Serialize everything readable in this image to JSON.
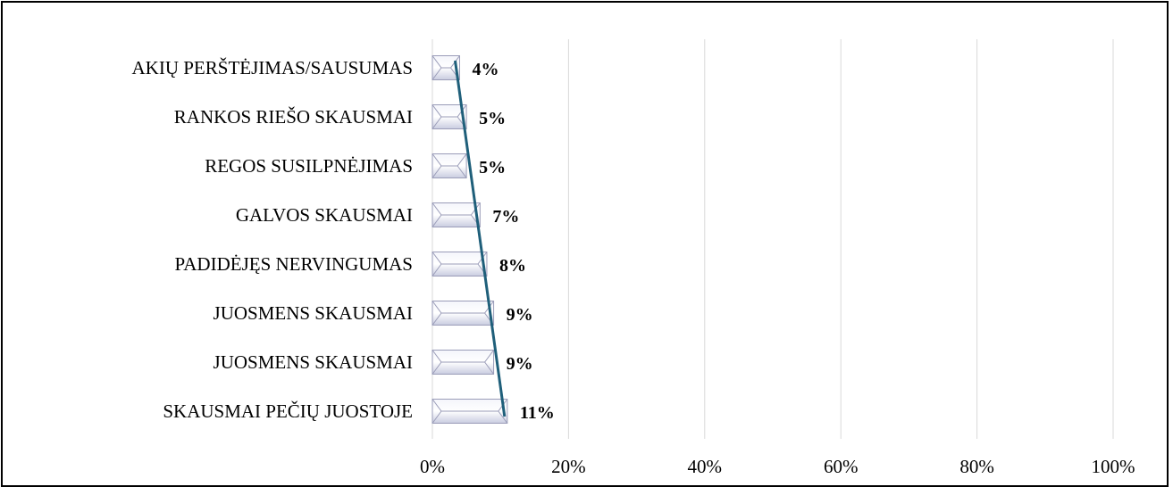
{
  "chart_data": {
    "type": "bar",
    "orientation": "horizontal",
    "categories": [
      "AKIŲ PERŠTĖJIMAS/SAUSUMAS",
      "RANKOS RIEŠO SKAUSMAI",
      "REGOS SUSILPNĖJIMAS",
      "GALVOS SKAUSMAI",
      "PADIDĖJĘS NERVINGUMAS",
      "JUOSMENS SKAUSMAI",
      "JUOSMENS SKAUSMAI",
      "SKAUSMAI PEČIŲ JUOSTOJE"
    ],
    "values": [
      4,
      5,
      5,
      7,
      8,
      9,
      9,
      11
    ],
    "value_labels": [
      "4%",
      "5%",
      "5%",
      "7%",
      "8%",
      "9%",
      "9%",
      "11%"
    ],
    "xlim": [
      0,
      100
    ],
    "x_ticks": [
      0,
      20,
      40,
      60,
      80,
      100
    ],
    "x_tick_labels": [
      "0%",
      "20%",
      "40%",
      "60%",
      "80%",
      "100%"
    ],
    "grid": "vertical",
    "trendline": true,
    "colors": {
      "bar_fill": "#dde0ef",
      "bar_edge": "#9a9cb8",
      "trendline": "#1f5f7a",
      "grid": "#d9d9d9"
    }
  }
}
